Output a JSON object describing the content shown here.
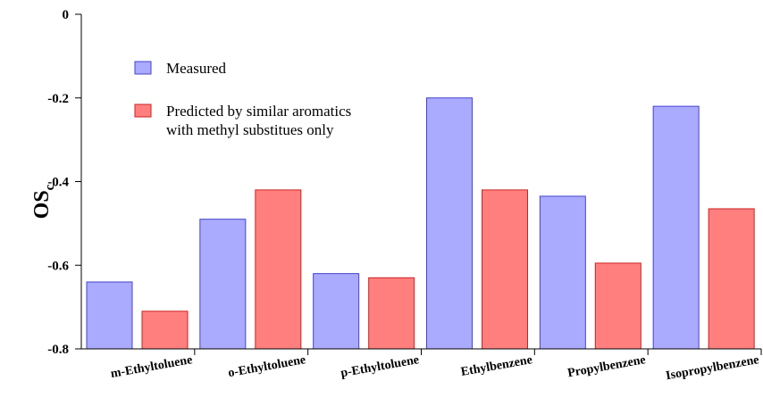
{
  "chart_data": {
    "type": "bar",
    "title": "",
    "xlabel": "",
    "ylabel": "OS",
    "ylabel_subscript": "c",
    "ylim": [
      -0.8,
      0
    ],
    "yticks": [
      "0",
      "-0.2",
      "-0.4",
      "-0.6",
      "-0.8"
    ],
    "ytick_values": [
      0,
      -0.2,
      -0.4,
      -0.6,
      -0.8
    ],
    "categories": [
      "m-Ethyltoluene",
      "o-Ethyltoluene",
      "p-Ethyltoluene",
      "Ethylbenzene",
      "Propylbenzene",
      "Isopropylbenzene"
    ],
    "series": [
      {
        "name": "Measured",
        "color": "#aaaaff",
        "stroke": "#4444cc",
        "values": [
          -0.64,
          -0.49,
          -0.62,
          -0.2,
          -0.435,
          -0.22
        ]
      },
      {
        "name": "Predicted by similar aromatics with methyl substitues only",
        "legend_lines": [
          "Predicted by similar aromatics",
          "with methyl substitues only"
        ],
        "color": "#ff7f7f",
        "stroke": "#cc2222",
        "values": [
          -0.71,
          -0.42,
          -0.63,
          -0.42,
          -0.595,
          -0.465
        ]
      }
    ],
    "legend_position": "top-left",
    "grid": false
  }
}
